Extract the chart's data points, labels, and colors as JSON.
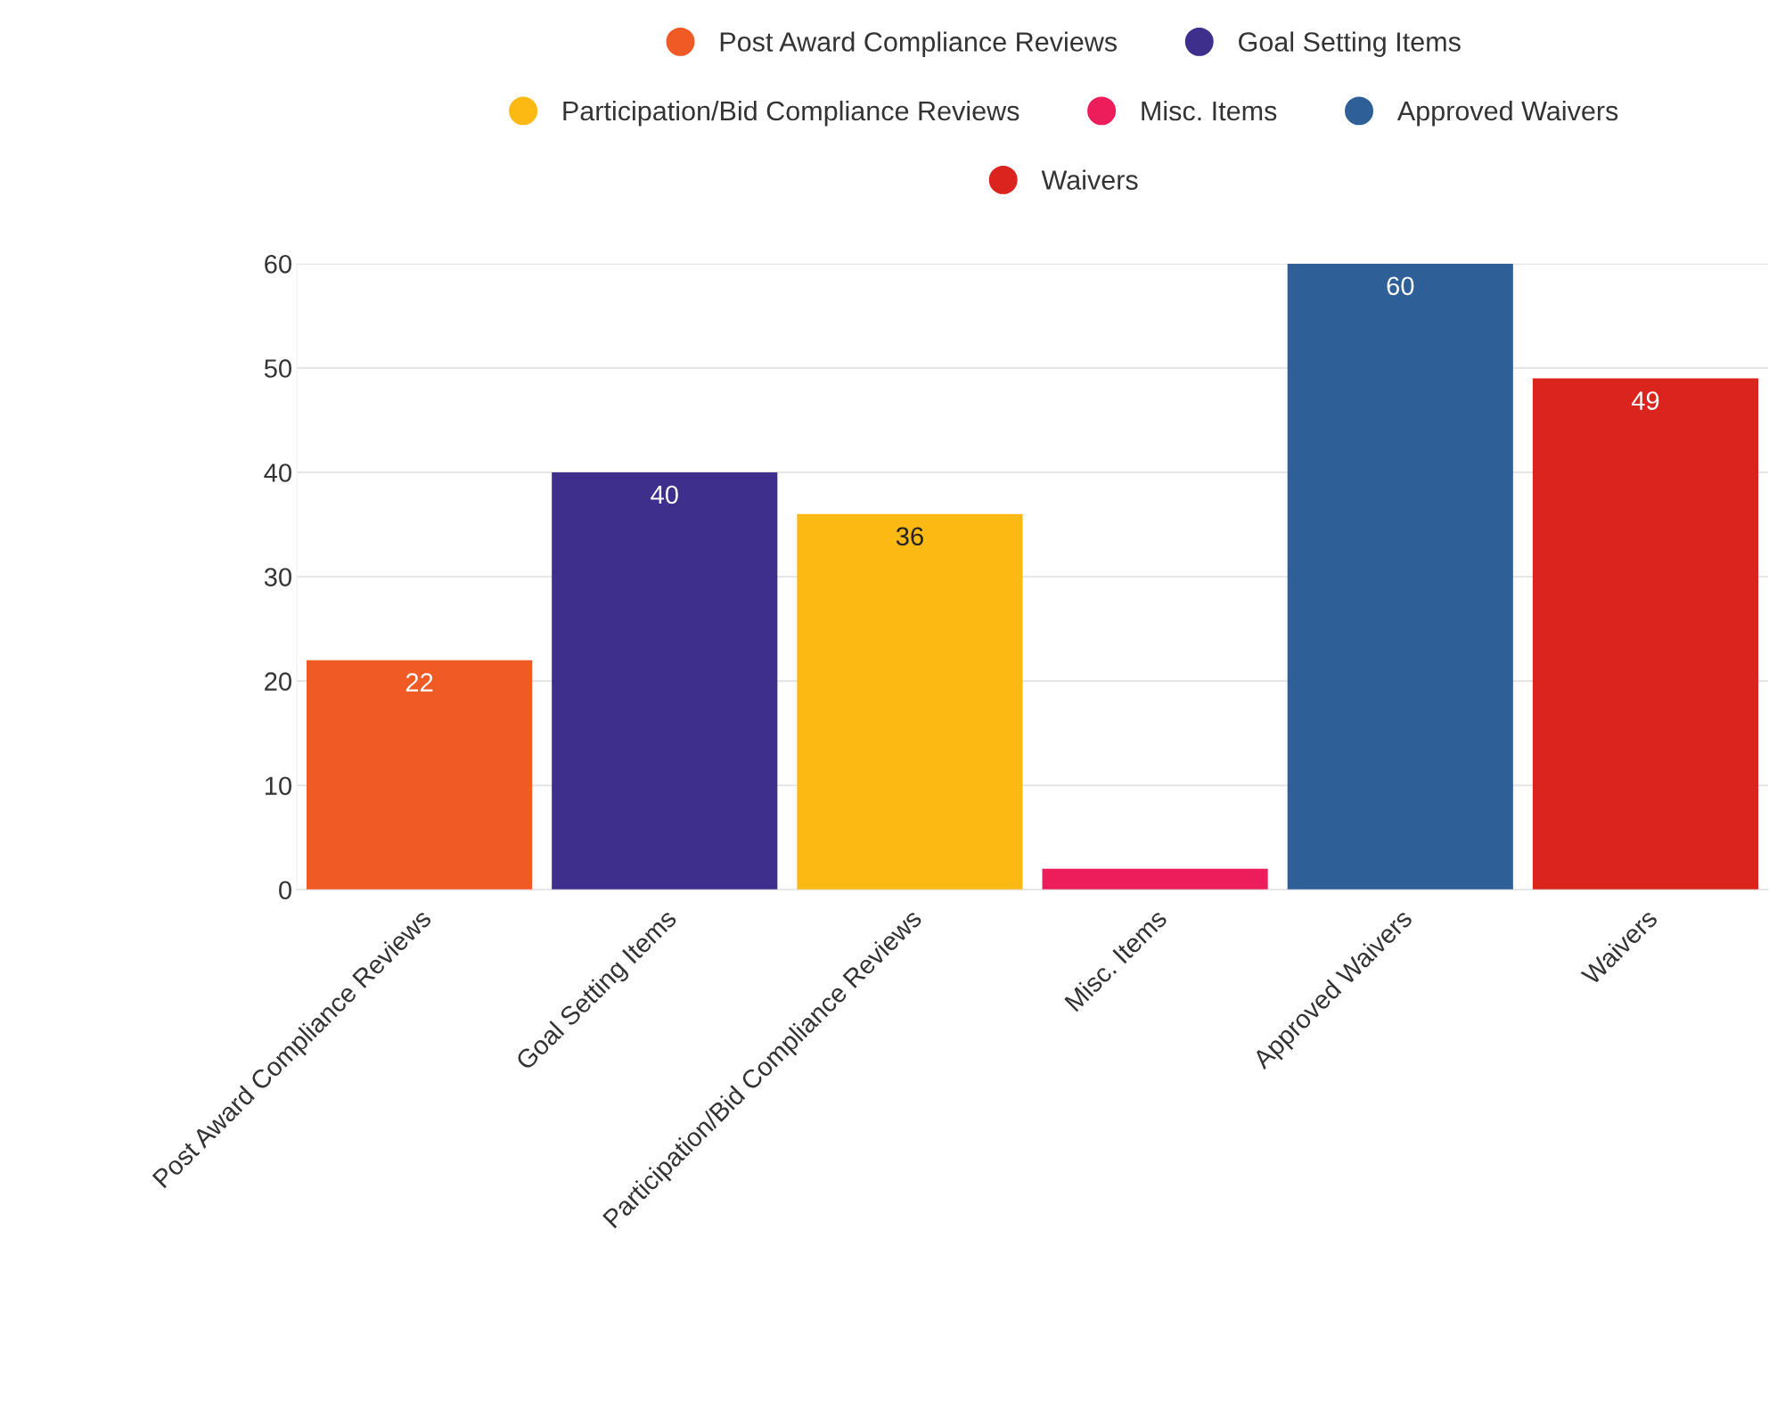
{
  "chart_data": {
    "type": "bar",
    "categories": [
      "Post Award Compliance Reviews",
      "Goal Setting Items",
      "Participation/Bid Compliance Reviews",
      "Misc. Items",
      "Approved Waivers",
      "Waivers"
    ],
    "series": [
      {
        "name": "Post Award Compliance Reviews",
        "color": "#f05a24",
        "values": [
          22,
          null,
          null,
          null,
          null,
          null
        ],
        "value_labels": [
          "22",
          null,
          null,
          null,
          null,
          null
        ]
      },
      {
        "name": "Goal Setting Items",
        "color": "#3f2f8c",
        "values": [
          null,
          40,
          null,
          null,
          null,
          null
        ],
        "value_labels": [
          null,
          "40",
          null,
          null,
          null,
          null
        ]
      },
      {
        "name": "Participation/Bid Compliance Reviews",
        "color": "#fdb913",
        "values": [
          null,
          null,
          36,
          null,
          null,
          null
        ],
        "value_labels": [
          null,
          null,
          "36",
          null,
          null,
          null
        ]
      },
      {
        "name": "Misc. Items",
        "color": "#ed1c5b",
        "values": [
          null,
          null,
          null,
          2,
          null,
          null
        ],
        "value_labels": [
          null,
          null,
          null,
          null,
          null,
          null
        ]
      },
      {
        "name": "Approved Waivers",
        "color": "#2e6097",
        "values": [
          null,
          null,
          null,
          null,
          60,
          null
        ],
        "value_labels": [
          null,
          null,
          null,
          null,
          "60",
          null
        ]
      },
      {
        "name": "Waivers",
        "color": "#dc241f",
        "values": [
          null,
          null,
          null,
          null,
          null,
          49
        ],
        "value_labels": [
          null,
          null,
          null,
          null,
          null,
          "49"
        ]
      }
    ],
    "ylim": [
      0,
      60
    ],
    "yticks": [
      0,
      10,
      20,
      30,
      40,
      50,
      60
    ],
    "grid": "y",
    "legend": "top"
  }
}
